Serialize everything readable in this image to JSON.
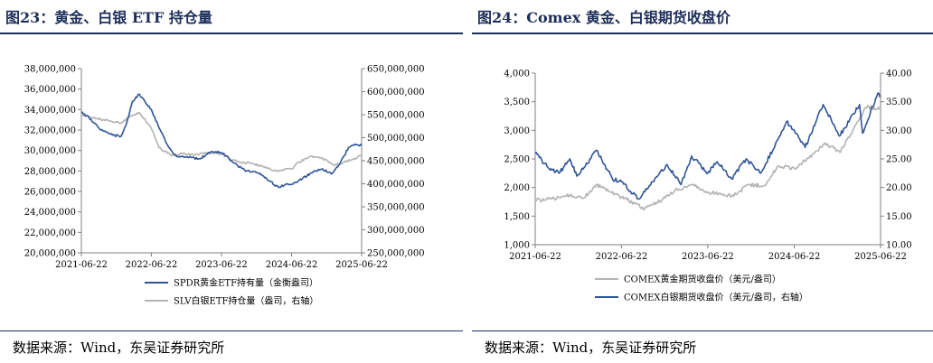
{
  "panels": [
    {
      "title": "图23：黄金、白银 ETF 持仓量",
      "source": "数据来源：Wind，东吴证券研究所"
    },
    {
      "title": "图24：Comex 黄金、白银期货收盘价",
      "source": "数据来源：Wind，东吴证券研究所"
    }
  ],
  "chart_data": [
    {
      "type": "line",
      "x_ticks": [
        "2021-06-22",
        "2022-06-22",
        "2023-06-22",
        "2024-06-22",
        "2025-06-22"
      ],
      "x_range": [
        "2021-06-22",
        "2025-06-22"
      ],
      "y_left": {
        "range": [
          20000000,
          38000000
        ],
        "ticks": [
          "20,000,000",
          "22,000,000",
          "24,000,000",
          "26,000,000",
          "28,000,000",
          "30,000,000",
          "32,000,000",
          "34,000,000",
          "36,000,000",
          "38,000,000"
        ]
      },
      "y_right": {
        "range": [
          250000000,
          650000000
        ],
        "ticks": [
          "250,000,000",
          "300,000,000",
          "350,000,000",
          "400,000,000",
          "450,000,000",
          "500,000,000",
          "550,000,000",
          "600,000,000",
          "650,000,000"
        ]
      },
      "legend_position": "bottom",
      "grid": false,
      "series": [
        {
          "name": "SPDR黄金ETF持有量（金衡盎司）",
          "axis": "left",
          "color": "#2f5597",
          "points": [
            [
              "2021-06-22",
              33800000
            ],
            [
              "2021-08-01",
              33200000
            ],
            [
              "2021-10-01",
              32000000
            ],
            [
              "2021-12-01",
              31500000
            ],
            [
              "2022-01-15",
              31400000
            ],
            [
              "2022-02-15",
              32800000
            ],
            [
              "2022-03-15",
              34800000
            ],
            [
              "2022-04-20",
              35500000
            ],
            [
              "2022-06-22",
              34000000
            ],
            [
              "2022-08-01",
              32200000
            ],
            [
              "2022-09-15",
              30500000
            ],
            [
              "2022-11-01",
              29400000
            ],
            [
              "2023-01-01",
              29300000
            ],
            [
              "2023-03-01",
              29200000
            ],
            [
              "2023-05-01",
              29900000
            ],
            [
              "2023-06-22",
              29800000
            ],
            [
              "2023-08-01",
              29200000
            ],
            [
              "2023-09-15",
              28500000
            ],
            [
              "2023-11-01",
              28000000
            ],
            [
              "2024-01-01",
              27800000
            ],
            [
              "2024-03-01",
              27000000
            ],
            [
              "2024-04-15",
              26400000
            ],
            [
              "2024-05-15",
              26600000
            ],
            [
              "2024-06-22",
              26700000
            ],
            [
              "2024-08-01",
              27100000
            ],
            [
              "2024-10-01",
              27800000
            ],
            [
              "2024-12-01",
              28200000
            ],
            [
              "2025-01-15",
              27700000
            ],
            [
              "2025-03-01",
              28700000
            ],
            [
              "2025-04-15",
              30300000
            ],
            [
              "2025-05-15",
              30600000
            ],
            [
              "2025-06-22",
              30500000
            ]
          ]
        },
        {
          "name": "SLV白银ETF持仓量（盎司，右轴）",
          "axis": "right",
          "color": "#b3b3b3",
          "points": [
            [
              "2021-06-22",
              550000000
            ],
            [
              "2021-08-01",
              545000000
            ],
            [
              "2021-10-01",
              540000000
            ],
            [
              "2021-12-01",
              535000000
            ],
            [
              "2022-01-15",
              532000000
            ],
            [
              "2022-03-01",
              545000000
            ],
            [
              "2022-04-20",
              555000000
            ],
            [
              "2022-06-22",
              520000000
            ],
            [
              "2022-08-01",
              478000000
            ],
            [
              "2022-10-01",
              462000000
            ],
            [
              "2022-12-01",
              465000000
            ],
            [
              "2023-02-01",
              462000000
            ],
            [
              "2023-04-01",
              468000000
            ],
            [
              "2023-06-22",
              465000000
            ],
            [
              "2023-08-01",
              455000000
            ],
            [
              "2023-10-01",
              447000000
            ],
            [
              "2023-12-01",
              444000000
            ],
            [
              "2024-02-01",
              437000000
            ],
            [
              "2024-04-01",
              428000000
            ],
            [
              "2024-06-22",
              432000000
            ],
            [
              "2024-08-01",
              447000000
            ],
            [
              "2024-10-01",
              460000000
            ],
            [
              "2024-12-01",
              455000000
            ],
            [
              "2025-02-01",
              440000000
            ],
            [
              "2025-04-01",
              448000000
            ],
            [
              "2025-05-15",
              455000000
            ],
            [
              "2025-06-22",
              462000000
            ]
          ]
        }
      ]
    },
    {
      "type": "line",
      "x_ticks": [
        "2021-06-22",
        "2022-06-22",
        "2023-06-22",
        "2024-06-22",
        "2025-06-22"
      ],
      "x_range": [
        "2021-06-22",
        "2025-06-22"
      ],
      "y_left": {
        "range": [
          1000,
          4000
        ],
        "ticks": [
          "1,000",
          "1,500",
          "2,000",
          "2,500",
          "3,000",
          "3,500",
          "4,000"
        ]
      },
      "y_right": {
        "range": [
          10,
          40
        ],
        "ticks": [
          "10.00",
          "15.00",
          "20.00",
          "25.00",
          "30.00",
          "35.00",
          "40.00"
        ]
      },
      "legend_position": "bottom",
      "grid": false,
      "series": [
        {
          "name": "COMEX黄金期货收盘价（美元/盎司）",
          "axis": "left",
          "color": "#b3b3b3",
          "points": [
            [
              "2021-06-22",
              1780
            ],
            [
              "2021-09-01",
              1800
            ],
            [
              "2021-11-15",
              1860
            ],
            [
              "2022-01-15",
              1820
            ],
            [
              "2022-03-08",
              2050
            ],
            [
              "2022-06-22",
              1830
            ],
            [
              "2022-09-28",
              1630
            ],
            [
              "2022-12-15",
              1800
            ],
            [
              "2023-02-01",
              1940
            ],
            [
              "2023-04-15",
              2050
            ],
            [
              "2023-06-22",
              1920
            ],
            [
              "2023-10-01",
              1850
            ],
            [
              "2023-12-15",
              2050
            ],
            [
              "2024-02-15",
              2030
            ],
            [
              "2024-04-15",
              2380
            ],
            [
              "2024-06-22",
              2340
            ],
            [
              "2024-09-15",
              2600
            ],
            [
              "2024-10-30",
              2780
            ],
            [
              "2024-12-30",
              2620
            ],
            [
              "2025-02-15",
              2930
            ],
            [
              "2025-04-20",
              3400
            ],
            [
              "2025-06-22",
              3380
            ]
          ]
        },
        {
          "name": "COMEX白银期货收盘价（美元/盎司，右轴）",
          "axis": "right",
          "color": "#2f5597",
          "points": [
            [
              "2021-06-22",
              26.0
            ],
            [
              "2021-08-15",
              23.5
            ],
            [
              "2021-10-01",
              22.5
            ],
            [
              "2021-11-15",
              25.0
            ],
            [
              "2021-12-15",
              22.0
            ],
            [
              "2022-01-15",
              23.5
            ],
            [
              "2022-03-08",
              26.5
            ],
            [
              "2022-05-15",
              21.5
            ],
            [
              "2022-06-22",
              21.0
            ],
            [
              "2022-09-01",
              18.0
            ],
            [
              "2022-11-01",
              21.0
            ],
            [
              "2023-01-01",
              24.0
            ],
            [
              "2023-03-01",
              20.5
            ],
            [
              "2023-04-15",
              25.5
            ],
            [
              "2023-06-22",
              22.5
            ],
            [
              "2023-08-01",
              24.5
            ],
            [
              "2023-10-01",
              21.5
            ],
            [
              "2023-12-01",
              25.0
            ],
            [
              "2024-02-01",
              22.5
            ],
            [
              "2024-04-15",
              28.5
            ],
            [
              "2024-05-20",
              31.5
            ],
            [
              "2024-06-22",
              30.0
            ],
            [
              "2024-08-07",
              27.0
            ],
            [
              "2024-10-22",
              34.5
            ],
            [
              "2024-12-30",
              29.0
            ],
            [
              "2025-03-25",
              34.5
            ],
            [
              "2025-04-07",
              29.5
            ],
            [
              "2025-06-10",
              36.5
            ],
            [
              "2025-06-22",
              36.0
            ]
          ]
        }
      ]
    }
  ]
}
